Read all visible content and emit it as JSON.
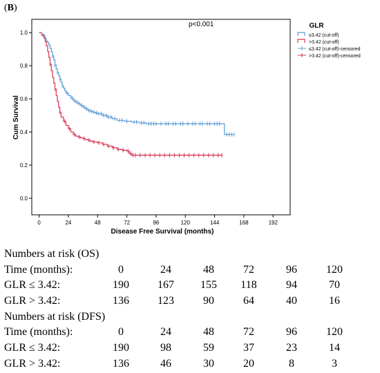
{
  "panel_label": {
    "open": "(",
    "letter": "B",
    "close": ")"
  },
  "chart_data": {
    "type": "line",
    "xlabel": "Disease Free Survival (months)",
    "ylabel": "Cum Survival",
    "annotation": "p<0.001",
    "xlim": [
      -6,
      206
    ],
    "ylim": [
      -0.1,
      1.08
    ],
    "x_ticks": [
      0,
      24,
      48,
      72,
      96,
      120,
      144,
      168,
      192
    ],
    "y_ticks": [
      0.0,
      0.2,
      0.4,
      0.6,
      0.8,
      1.0
    ],
    "y_tick_labels": [
      "0.0",
      "0.2",
      "0.4",
      "0.6",
      "0.8",
      "1.0"
    ],
    "legend": {
      "title": "GLR",
      "position": "top-right",
      "entries": [
        "≤3.42 (cut-off)",
        ">3.42 (cut-off)",
        "≤3.42 (cut-off)-censored",
        ">3.42 (cut-off)-censored"
      ]
    },
    "series": [
      {
        "name": "≤3.42 (cut-off)",
        "color": "#5b9bd5",
        "step_points": [
          [
            0,
            1.0
          ],
          [
            2,
            0.99
          ],
          [
            4,
            0.98
          ],
          [
            5,
            0.965
          ],
          [
            6,
            0.95
          ],
          [
            7,
            0.94
          ],
          [
            8,
            0.925
          ],
          [
            9,
            0.905
          ],
          [
            10,
            0.885
          ],
          [
            11,
            0.86
          ],
          [
            12,
            0.835
          ],
          [
            13,
            0.805
          ],
          [
            14,
            0.78
          ],
          [
            15,
            0.76
          ],
          [
            16,
            0.74
          ],
          [
            17,
            0.72
          ],
          [
            18,
            0.7
          ],
          [
            19,
            0.68
          ],
          [
            20,
            0.665
          ],
          [
            21,
            0.65
          ],
          [
            22,
            0.635
          ],
          [
            24,
            0.62
          ],
          [
            26,
            0.605
          ],
          [
            28,
            0.59
          ],
          [
            30,
            0.58
          ],
          [
            32,
            0.57
          ],
          [
            34,
            0.56
          ],
          [
            36,
            0.55
          ],
          [
            38,
            0.54
          ],
          [
            40,
            0.53
          ],
          [
            42,
            0.525
          ],
          [
            44,
            0.52
          ],
          [
            46,
            0.515
          ],
          [
            48,
            0.51
          ],
          [
            52,
            0.5
          ],
          [
            56,
            0.49
          ],
          [
            60,
            0.48
          ],
          [
            64,
            0.47
          ],
          [
            70,
            0.465
          ],
          [
            76,
            0.46
          ],
          [
            82,
            0.455
          ],
          [
            88,
            0.45
          ],
          [
            150,
            0.45
          ],
          [
            152,
            0.385
          ],
          [
            160,
            0.385
          ]
        ],
        "censored": [
          2,
          11,
          13,
          15,
          17,
          19,
          23,
          27,
          29,
          31,
          33,
          35,
          37,
          39,
          41,
          43,
          45,
          47,
          49,
          51,
          53,
          55,
          57,
          59,
          62,
          66,
          68,
          72,
          78,
          80,
          84,
          86,
          90,
          92,
          94,
          96,
          100,
          104,
          106,
          110,
          112,
          116,
          118,
          122,
          126,
          128,
          132,
          134,
          138,
          140,
          144,
          146,
          148,
          154,
          156,
          158,
          160
        ]
      },
      {
        "name": ">3.42 (cut-off)",
        "color": "#d9304f",
        "step_points": [
          [
            0,
            1.0
          ],
          [
            2,
            0.99
          ],
          [
            3,
            0.98
          ],
          [
            4,
            0.965
          ],
          [
            5,
            0.945
          ],
          [
            6,
            0.92
          ],
          [
            7,
            0.885
          ],
          [
            8,
            0.85
          ],
          [
            9,
            0.81
          ],
          [
            10,
            0.77
          ],
          [
            11,
            0.73
          ],
          [
            12,
            0.695
          ],
          [
            13,
            0.66
          ],
          [
            14,
            0.62
          ],
          [
            15,
            0.585
          ],
          [
            16,
            0.55
          ],
          [
            17,
            0.52
          ],
          [
            18,
            0.49
          ],
          [
            20,
            0.465
          ],
          [
            22,
            0.44
          ],
          [
            24,
            0.42
          ],
          [
            26,
            0.4
          ],
          [
            28,
            0.385
          ],
          [
            30,
            0.375
          ],
          [
            32,
            0.37
          ],
          [
            34,
            0.365
          ],
          [
            36,
            0.36
          ],
          [
            38,
            0.355
          ],
          [
            40,
            0.35
          ],
          [
            42,
            0.345
          ],
          [
            44,
            0.34
          ],
          [
            48,
            0.335
          ],
          [
            52,
            0.325
          ],
          [
            56,
            0.315
          ],
          [
            60,
            0.305
          ],
          [
            64,
            0.295
          ],
          [
            68,
            0.29
          ],
          [
            72,
            0.285
          ],
          [
            74,
            0.27
          ],
          [
            76,
            0.26
          ],
          [
            150,
            0.26
          ]
        ],
        "censored": [
          9,
          13,
          17,
          21,
          25,
          29,
          33,
          37,
          41,
          45,
          49,
          53,
          57,
          61,
          65,
          69,
          73,
          75,
          77,
          79,
          83,
          87,
          91,
          95,
          99,
          103,
          107,
          111,
          115,
          119,
          123,
          127,
          131,
          135,
          139,
          143,
          147,
          150
        ]
      }
    ]
  },
  "risk_tables": [
    {
      "title": "Numbers at risk (OS)",
      "time_label": "Time (months):",
      "times": [
        "0",
        "24",
        "48",
        "72",
        "96",
        "120"
      ],
      "groups": [
        {
          "label": "GLR ≤ 3.42:",
          "values": [
            "190",
            "167",
            "155",
            "118",
            "94",
            "70"
          ]
        },
        {
          "label": "GLR > 3.42:",
          "values": [
            "136",
            "123",
            "90",
            "64",
            "40",
            "16"
          ]
        }
      ]
    },
    {
      "title": "Numbers at risk (DFS)",
      "time_label": "Time (months):",
      "times": [
        "0",
        "24",
        "48",
        "72",
        "96",
        "120"
      ],
      "groups": [
        {
          "label": "GLR ≤ 3.42:",
          "values": [
            "190",
            "98",
            "59",
            "37",
            "23",
            "14"
          ]
        },
        {
          "label": "GLR > 3.42:",
          "values": [
            "136",
            "46",
            "30",
            "20",
            "8",
            "3"
          ]
        }
      ]
    }
  ]
}
